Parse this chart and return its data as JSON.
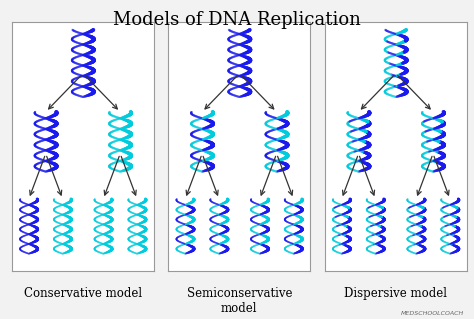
{
  "title": "Models of DNA Replication",
  "title_fontsize": 13,
  "title_font": "serif",
  "bg_color": "#f2f2f2",
  "panel_bg": "#ffffff",
  "panel_border": "#aaaaaa",
  "labels": [
    "Conservative model",
    "Semiconservative\nmodel",
    "Dispersive model"
  ],
  "label_fontsize": 8.5,
  "label_font": "serif",
  "logo_text": "MEDSCHOOLCOACH",
  "dark_blue": "#1a1aee",
  "mid_blue": "#3355cc",
  "cyan": "#00ccdd",
  "light_cyan": "#22ddee"
}
